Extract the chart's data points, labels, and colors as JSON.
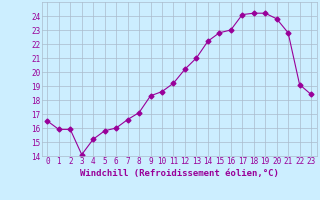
{
  "x": [
    0,
    1,
    2,
    3,
    4,
    5,
    6,
    7,
    8,
    9,
    10,
    11,
    12,
    13,
    14,
    15,
    16,
    17,
    18,
    19,
    20,
    21,
    22,
    23
  ],
  "y": [
    16.5,
    15.9,
    15.9,
    14.1,
    15.2,
    15.8,
    16.0,
    16.6,
    17.1,
    18.3,
    18.6,
    19.2,
    20.2,
    21.0,
    22.2,
    22.8,
    23.0,
    24.1,
    24.2,
    24.2,
    23.8,
    22.8,
    19.1,
    18.4
  ],
  "line_color": "#990099",
  "marker": "D",
  "marker_size": 2.5,
  "bg_color": "#cceeff",
  "grid_color": "#aabbcc",
  "xlabel": "Windchill (Refroidissement éolien,°C)",
  "xlabel_color": "#990099",
  "xlim": [
    -0.5,
    23.5
  ],
  "ylim": [
    14,
    25
  ],
  "yticks": [
    14,
    15,
    16,
    17,
    18,
    19,
    20,
    21,
    22,
    23,
    24
  ],
  "xticks": [
    0,
    1,
    2,
    3,
    4,
    5,
    6,
    7,
    8,
    9,
    10,
    11,
    12,
    13,
    14,
    15,
    16,
    17,
    18,
    19,
    20,
    21,
    22,
    23
  ],
  "tick_color": "#990099",
  "tick_fontsize": 5.5,
  "xlabel_fontsize": 6.5
}
